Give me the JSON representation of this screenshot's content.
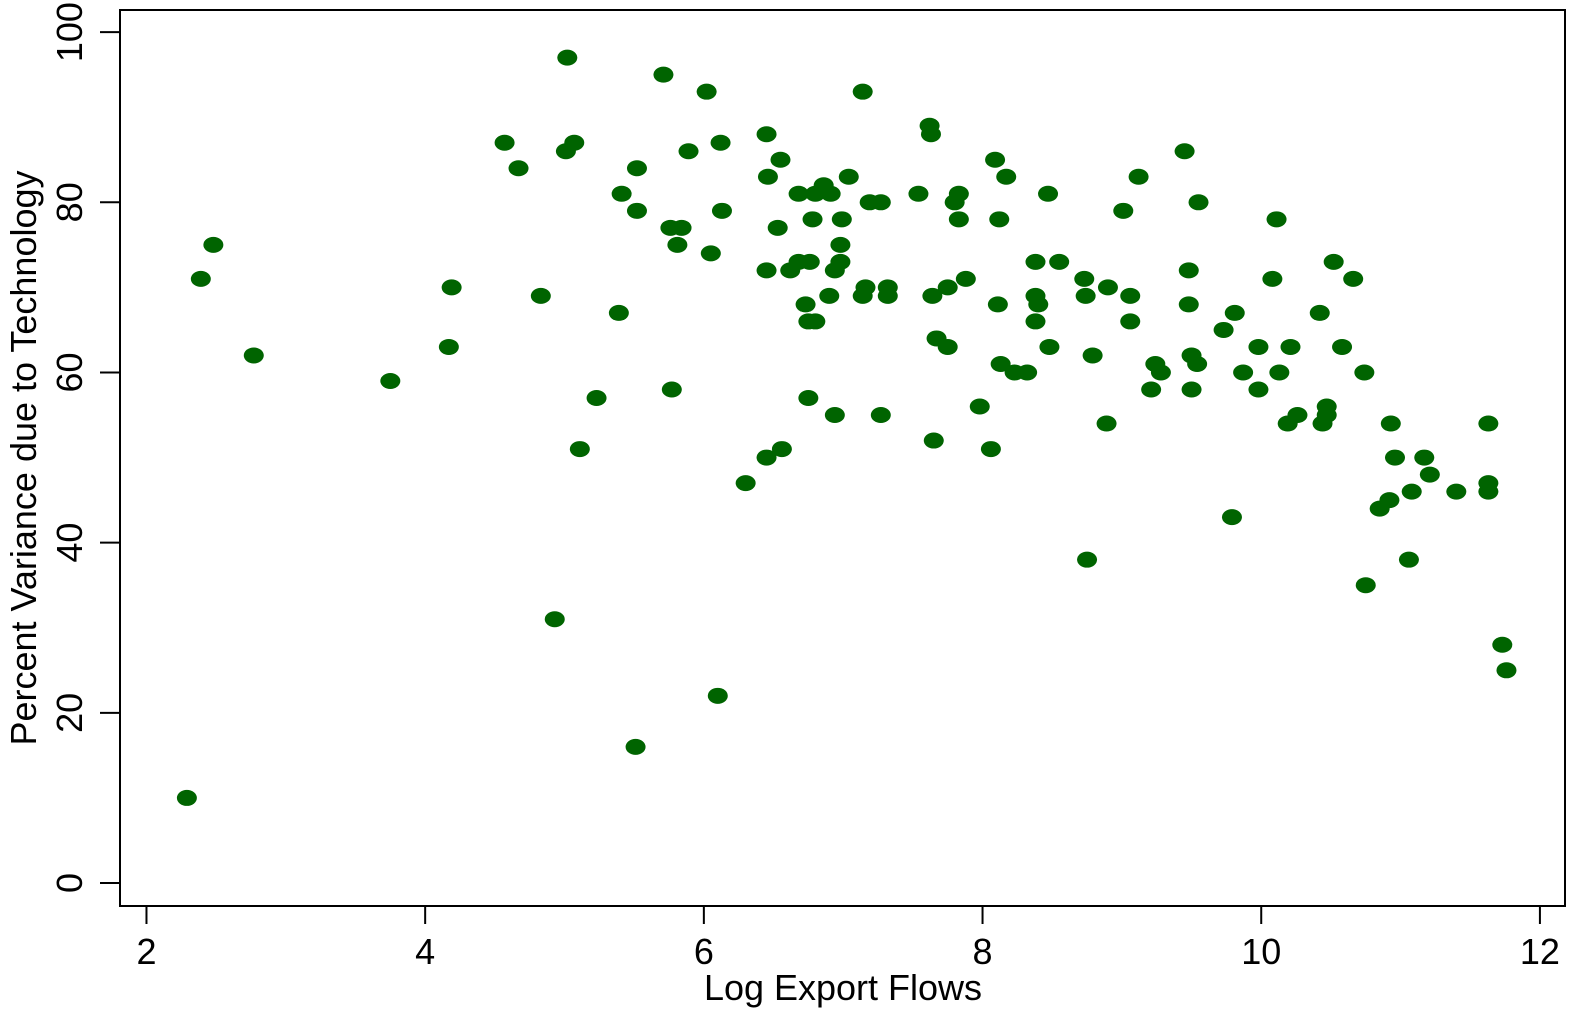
{
  "chart_data": {
    "type": "scatter",
    "x_label": "Log Export Flows",
    "y_label": "Percent Variance due to Technology",
    "color": "#006400",
    "xlim": [
      1.81,
      12.18
    ],
    "ylim": [
      -2.7,
      102.6
    ],
    "xticks": [
      2,
      4,
      6,
      8,
      10,
      12
    ],
    "yticks": [
      0,
      20,
      40,
      60,
      80,
      100
    ],
    "x": [
      2.29,
      2.39,
      2.48,
      2.77,
      3.75,
      4.17,
      4.19,
      4.57,
      4.67,
      4.83,
      4.93,
      5.02,
      5.01,
      5.07,
      5.11,
      5.23,
      5.39,
      5.41,
      5.51,
      5.52,
      5.52,
      5.71,
      5.77,
      5.76,
      5.84,
      5.81,
      5.89,
      6.02,
      6.05,
      6.1,
      6.12,
      6.13,
      6.3,
      6.45,
      6.46,
      6.45,
      6.45,
      6.53,
      6.55,
      6.56,
      6.62,
      6.68,
      6.68,
      6.73,
      6.75,
      6.75,
      6.76,
      6.78,
      6.8,
      6.8,
      6.86,
      6.91,
      6.9,
      6.94,
      6.94,
      6.98,
      6.98,
      6.99,
      7.04,
      7.14,
      7.14,
      7.16,
      7.19,
      7.27,
      7.27,
      7.32,
      7.32,
      7.54,
      7.62,
      7.63,
      7.64,
      7.65,
      7.67,
      7.75,
      7.75,
      7.8,
      7.83,
      7.83,
      7.88,
      7.98,
      8.06,
      8.09,
      8.11,
      8.12,
      8.13,
      8.17,
      8.23,
      8.32,
      8.38,
      8.38,
      8.4,
      8.38,
      8.47,
      8.48,
      8.55,
      8.73,
      8.74,
      8.75,
      8.79,
      8.9,
      8.89,
      9.01,
      9.06,
      9.06,
      9.12,
      9.21,
      9.24,
      9.28,
      9.45,
      9.48,
      9.48,
      9.5,
      9.5,
      9.54,
      9.55,
      9.73,
      9.79,
      9.81,
      9.87,
      9.98,
      9.98,
      10.08,
      10.11,
      10.13,
      10.19,
      10.21,
      10.26,
      10.42,
      10.44,
      10.47,
      10.47,
      10.52,
      10.58,
      10.66,
      10.74,
      10.75,
      10.85,
      10.92,
      10.93,
      10.96,
      11.06,
      11.08,
      11.17,
      11.21,
      11.4,
      11.63,
      11.63,
      11.63,
      11.73,
      11.76
    ],
    "values": [
      10,
      71,
      75,
      62,
      59,
      63,
      70,
      87,
      84,
      69,
      31,
      97,
      86,
      87,
      51,
      57,
      67,
      81,
      16,
      84,
      79,
      95,
      58,
      77,
      77,
      75,
      86,
      93,
      74,
      22,
      87,
      79,
      47,
      88,
      83,
      72,
      50,
      77,
      85,
      51,
      72,
      81,
      73,
      68,
      66,
      57,
      73,
      78,
      66,
      81,
      82,
      81,
      69,
      55,
      72,
      75,
      73,
      78,
      83,
      93,
      69,
      70,
      80,
      80,
      55,
      70,
      69,
      81,
      89,
      88,
      69,
      52,
      64,
      70,
      63,
      80,
      81,
      78,
      71,
      56,
      51,
      85,
      68,
      78,
      61,
      83,
      60,
      60,
      73,
      69,
      68,
      66,
      81,
      63,
      73,
      71,
      69,
      38,
      62,
      70,
      54,
      79,
      69,
      66,
      83,
      58,
      61,
      60,
      86,
      72,
      68,
      62,
      58,
      61,
      80,
      65,
      43,
      67,
      60,
      63,
      58,
      71,
      78,
      60,
      54,
      63,
      55,
      67,
      54,
      56,
      55,
      73,
      63,
      71,
      60,
      35,
      44,
      45,
      54,
      50,
      38,
      46,
      50,
      48,
      46,
      54,
      47,
      46,
      28,
      25
    ]
  }
}
